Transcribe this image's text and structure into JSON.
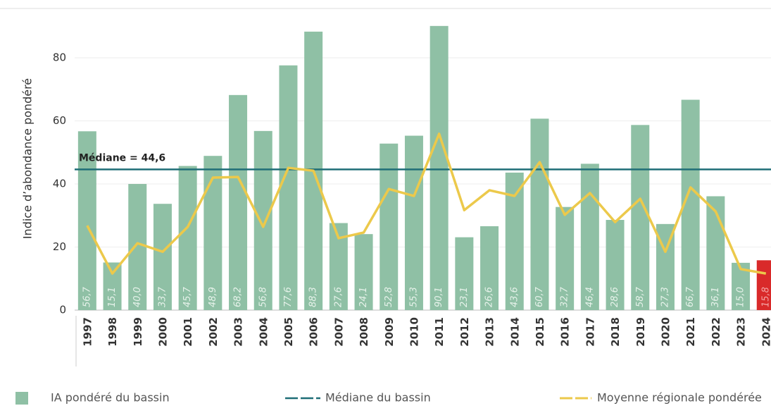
{
  "chart_data": {
    "type": "bar",
    "y_label": "Indice d’abondance pondéré",
    "categories": [
      "1997",
      "1998",
      "1999",
      "2000",
      "2001",
      "2002",
      "2003",
      "2004",
      "2005",
      "2006",
      "2007",
      "2008",
      "2009",
      "2010",
      "2011",
      "2012",
      "2013",
      "2014",
      "2015",
      "2016",
      "2017",
      "2018",
      "2019",
      "2020",
      "2021",
      "2022",
      "2023",
      "2024"
    ],
    "series": [
      {
        "name": "IA pondéré du bassin",
        "type": "bar",
        "color": "#8fc0a5",
        "colors": [
          "#8fc0a5",
          "#8fc0a5",
          "#8fc0a5",
          "#8fc0a5",
          "#8fc0a5",
          "#8fc0a5",
          "#8fc0a5",
          "#8fc0a5",
          "#8fc0a5",
          "#8fc0a5",
          "#8fc0a5",
          "#8fc0a5",
          "#8fc0a5",
          "#8fc0a5",
          "#8fc0a5",
          "#8fc0a5",
          "#8fc0a5",
          "#8fc0a5",
          "#8fc0a5",
          "#8fc0a5",
          "#8fc0a5",
          "#8fc0a5",
          "#8fc0a5",
          "#8fc0a5",
          "#8fc0a5",
          "#8fc0a5",
          "#8fc0a5",
          "#d92a2a"
        ],
        "values": [
          56.7,
          15.1,
          40.0,
          33.7,
          45.7,
          48.9,
          68.2,
          56.8,
          77.6,
          88.3,
          27.6,
          24.1,
          52.8,
          55.3,
          90.1,
          23.1,
          26.6,
          43.6,
          60.7,
          32.7,
          46.4,
          28.6,
          58.7,
          27.3,
          66.7,
          36.1,
          15.0,
          15.8
        ],
        "value_labels": [
          "56,7",
          "15,1",
          "40,0",
          "33,7",
          "45,7",
          "48,9",
          "68,2",
          "56,8",
          "77,6",
          "88,3",
          "27,6",
          "24,1",
          "52,8",
          "55,3",
          "90,1",
          "23,1",
          "26,6",
          "43,6",
          "60,7",
          "32,7",
          "46,4",
          "28,6",
          "58,7",
          "27,3",
          "66,7",
          "36,1",
          "15,0",
          "15,8"
        ]
      },
      {
        "name": "Moyenne régionale pondérée",
        "type": "line",
        "color": "#ecc94b",
        "values": [
          26.8,
          11.6,
          21.2,
          18.5,
          26.4,
          42.0,
          42.2,
          26.4,
          45.1,
          44.2,
          22.8,
          24.6,
          38.4,
          36.2,
          55.9,
          31.7,
          38.0,
          36.2,
          46.9,
          30.2,
          37.1,
          27.9,
          35.3,
          18.5,
          38.9,
          31.3,
          13.0,
          11.6
        ]
      }
    ],
    "median": {
      "name": "Médiane du bassin",
      "value": 44.6,
      "label": "Médiane = 44,6",
      "color": "#1f6e77"
    },
    "ylim": [
      0,
      95
    ],
    "yticks": [
      0,
      20,
      40,
      60,
      80
    ],
    "grid": true
  }
}
